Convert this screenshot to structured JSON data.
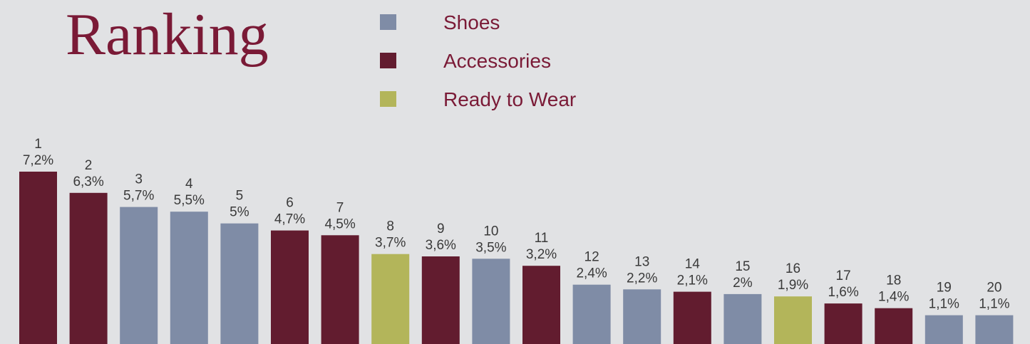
{
  "colors": {
    "background": "#e1e2e4",
    "title": "#7a1a36",
    "legend_text": "#7a1a36",
    "label_text": "#3a3a3a"
  },
  "chart_data": {
    "type": "bar",
    "title": "Ranking",
    "value_unit": "%",
    "legend_placement": "top-center",
    "grid": false,
    "ylim": [
      0,
      7.2
    ],
    "legend": [
      {
        "key": "shoes",
        "name": "Shoes",
        "color": "#7f8ca6"
      },
      {
        "key": "accessories",
        "name": "Accessories",
        "color": "#621c2f"
      },
      {
        "key": "rtw",
        "name": "Ready to Wear",
        "color": "#b3b55a"
      }
    ],
    "categories": [
      "1",
      "2",
      "3",
      "4",
      "5",
      "6",
      "7",
      "8",
      "9",
      "10",
      "11",
      "12",
      "13",
      "14",
      "15",
      "16",
      "17",
      "18",
      "19",
      "20"
    ],
    "values": [
      7.2,
      6.3,
      5.7,
      5.5,
      5,
      4.7,
      4.5,
      3.7,
      3.6,
      3.5,
      3.2,
      2.4,
      2.2,
      2.1,
      2,
      1.9,
      1.6,
      1.4,
      1.1,
      1.1
    ],
    "value_labels": [
      "7,2%",
      "6,3%",
      "5,7%",
      "5,5%",
      "5%",
      "4,7%",
      "4,5%",
      "3,7%",
      "3,6%",
      "3,5%",
      "3,2%",
      "2,4%",
      "2,2%",
      "2,1%",
      "2%",
      "1,9%",
      "1,6%",
      "1,4%",
      "1,1%",
      "1,1%"
    ],
    "bar_series": [
      "accessories",
      "accessories",
      "shoes",
      "shoes",
      "shoes",
      "accessories",
      "accessories",
      "rtw",
      "accessories",
      "shoes",
      "accessories",
      "shoes",
      "shoes",
      "accessories",
      "shoes",
      "rtw",
      "accessories",
      "accessories",
      "shoes",
      "shoes"
    ]
  }
}
